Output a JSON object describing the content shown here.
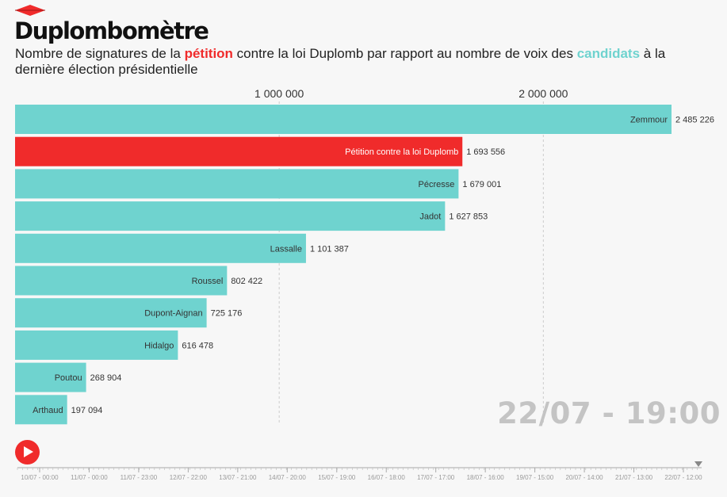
{
  "header": {
    "title": "Duplombomètre",
    "subtitle_part1": "Nombre de signatures de la ",
    "subtitle_petition": "pétition",
    "subtitle_part2": " contre la loi Duplomb par rapport au nombre de voix des ",
    "subtitle_candidats": "candidats",
    "subtitle_part3": " à la dernière élection présidentielle"
  },
  "colors": {
    "candidate": "#6fd3cf",
    "petition": "#f02b2b",
    "grid": "#cccccc"
  },
  "current_date": "22/07 - 19:00",
  "player": {
    "play_icon": "play-icon"
  },
  "timeline": {
    "labels": [
      "10/07 - 00:00",
      "11/07 - 00:00",
      "11/07 - 23:00",
      "12/07 - 22:00",
      "13/07 - 21:00",
      "14/07 - 20:00",
      "15/07 - 19:00",
      "16/07 - 18:00",
      "17/07 - 17:00",
      "18/07 - 16:00",
      "19/07 - 15:00",
      "20/07 - 14:00",
      "21/07 - 13:00",
      "22/07 - 12:00"
    ]
  },
  "chart_data": {
    "type": "bar",
    "orientation": "horizontal",
    "title": "Duplombomètre",
    "xlim": [
      0,
      2485226
    ],
    "xticks": [
      1000000,
      2000000
    ],
    "xtick_labels": [
      "1 000 000",
      "2 000 000"
    ],
    "categories": [
      "Zemmour",
      "Pétition contre la loi Duplomb",
      "Pécresse",
      "Jadot",
      "Lassalle",
      "Roussel",
      "Dupont-Aignan",
      "Hidalgo",
      "Poutou",
      "Arthaud"
    ],
    "values": [
      2485226,
      1693556,
      1679001,
      1627853,
      1101387,
      802422,
      725176,
      616478,
      268904,
      197094
    ],
    "value_labels": [
      "2 485 226",
      "1 693 556",
      "1 679 001",
      "1 627 853",
      "1 101 387",
      "802 422",
      "725 176",
      "616 478",
      "268 904",
      "197 094"
    ],
    "kinds": [
      "candidate",
      "petition",
      "candidate",
      "candidate",
      "candidate",
      "candidate",
      "candidate",
      "candidate",
      "candidate",
      "candidate"
    ]
  }
}
